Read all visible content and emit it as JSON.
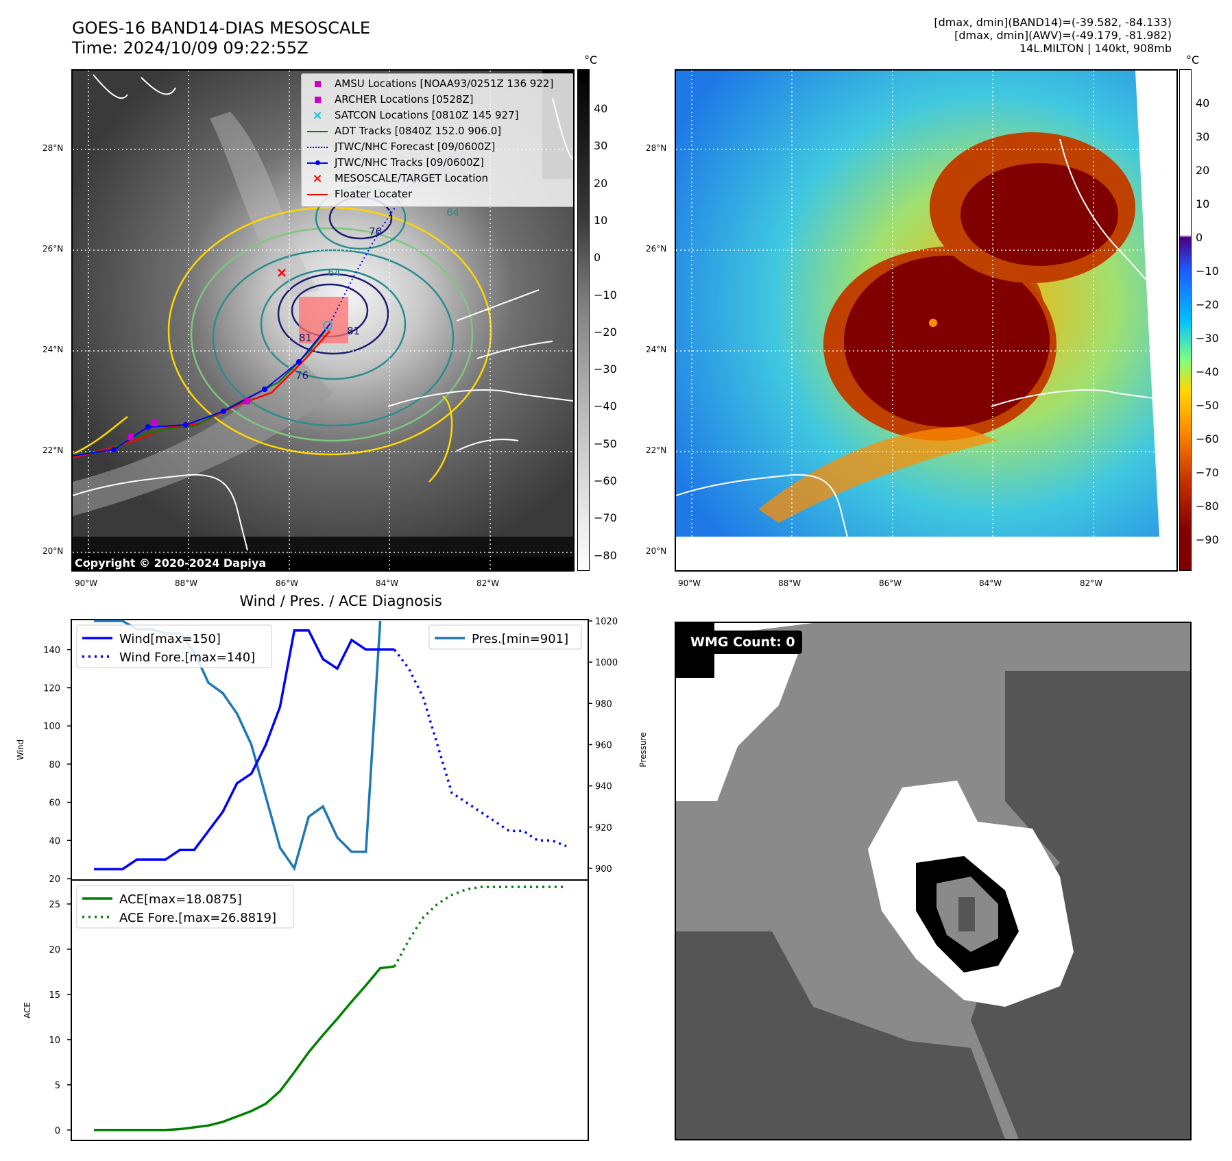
{
  "header": {
    "title_line1": "GOES-16 BAND14-DIAS MESOSCALE",
    "title_line2": "Time: 2024/10/09 09:22:55Z",
    "info_line1": "[dmax, dmin](BAND14)=(-39.582, -84.133)",
    "info_line2": "[dmax, dmin](AWV)=(-49.179, -81.982)",
    "info_line3": "14L.MILTON | 140kt, 908mb"
  },
  "map_ir": {
    "copyright": "Copyright © 2020-2024 Dapiya",
    "lat_labels": [
      "28°N",
      "26°N",
      "24°N",
      "22°N",
      "20°N"
    ],
    "lon_labels": [
      "90°W",
      "88°W",
      "86°W",
      "84°W",
      "82°W"
    ],
    "contour_labels": [
      "64",
      "76",
      "76",
      "64",
      "81",
      "81"
    ],
    "legend": [
      {
        "label": "AMSU Locations [NOAA93/0251Z 136 922]",
        "marker": "square",
        "color": "#cc00cc"
      },
      {
        "label": "ARCHER Locations [0528Z]",
        "marker": "square",
        "color": "#cc00cc"
      },
      {
        "label": "SATCON Locations [0810Z 145 927]",
        "marker": "x",
        "color": "#17becf"
      },
      {
        "label": "ADT Tracks [0840Z 152.0 906.0]",
        "marker": "line",
        "color": "#008000"
      },
      {
        "label": "JTWC/NHC Forecast [09/0600Z]",
        "marker": "dotted",
        "color": "#0000ff"
      },
      {
        "label": "JTWC/NHC Tracks [09/0600Z]",
        "marker": "line-dot",
        "color": "#0000ff"
      },
      {
        "label": "MESOSCALE/TARGET Location",
        "marker": "x",
        "color": "#ff0000"
      },
      {
        "label": "Floater Locater",
        "marker": "line",
        "color": "#ff0000"
      }
    ]
  },
  "cbar_ir": {
    "unit": "°C",
    "ticks": [
      "40",
      "30",
      "20",
      "10",
      "0",
      "−10",
      "−20",
      "−30",
      "−40",
      "−50",
      "−60",
      "−70",
      "−80"
    ]
  },
  "map_wv": {
    "lat_labels": [
      "28°N",
      "26°N",
      "24°N",
      "22°N",
      "20°N"
    ],
    "lon_labels": [
      "90°W",
      "88°W",
      "86°W",
      "84°W",
      "82°W"
    ]
  },
  "cbar_wv": {
    "unit": "°C",
    "ticks": [
      "40",
      "30",
      "20",
      "10",
      "0",
      "−10",
      "−20",
      "−30",
      "−40",
      "−50",
      "−60",
      "−70",
      "−80",
      "−90"
    ]
  },
  "wmg": {
    "label": "WMG Count: 0"
  },
  "colors": {
    "wind": "#0000ff",
    "pressure": "#1f77b4",
    "ace": "#008000",
    "ir_yellow_contour": "#ffd700",
    "ir_green_contour": "#7fc77f",
    "ir_teal_contour": "#2a8c8c",
    "ir_navy_contour": "#1c1c6e",
    "wv_eye": "#800000"
  },
  "chart_data": [
    {
      "type": "line",
      "title": "Wind / Pres. / ACE Diagnosis",
      "xlabel": "",
      "ylabel": "Wind",
      "ylim": [
        20,
        155
      ],
      "y_ticks": [
        "140",
        "120",
        "100",
        "80",
        "60",
        "40",
        "20"
      ],
      "y2label": "Pressure",
      "y2lim": [
        895,
        1020
      ],
      "y2_ticks": [
        "1020",
        "1000",
        "980",
        "960",
        "940",
        "920",
        "900"
      ],
      "x_range": [
        0,
        33
      ],
      "legend_left": "upper-left",
      "legend_right": "upper-right",
      "series": [
        {
          "name": "Wind[max=150]",
          "style": "solid",
          "axis": "left",
          "x": [
            0,
            1,
            2,
            3,
            4,
            5,
            6,
            7,
            8,
            9,
            10,
            11,
            12,
            13,
            14,
            15,
            16,
            17,
            18,
            19,
            20,
            21
          ],
          "y": [
            25,
            25,
            25,
            30,
            30,
            30,
            35,
            35,
            45,
            55,
            70,
            75,
            90,
            110,
            150,
            150,
            135,
            130,
            145,
            140,
            140,
            140
          ]
        },
        {
          "name": "Wind Fore.[max=140]",
          "style": "dotted",
          "axis": "left",
          "x": [
            21,
            22,
            23,
            24,
            25,
            26,
            27,
            28,
            29,
            30,
            31,
            32,
            33
          ],
          "y": [
            140,
            130,
            115,
            90,
            65,
            60,
            55,
            50,
            45,
            45,
            40,
            40,
            37
          ]
        },
        {
          "name": "Pres.[min=901]",
          "style": "solid",
          "axis": "right",
          "x": [
            0,
            1,
            2,
            3,
            4,
            5,
            6,
            7,
            8,
            9,
            10,
            11,
            12,
            13,
            14,
            15,
            16,
            17,
            18,
            19,
            20
          ],
          "y": [
            1020,
            1020,
            1020,
            1016,
            1016,
            1014,
            1014,
            1005,
            990,
            985,
            975,
            960,
            935,
            910,
            900,
            925,
            930,
            915,
            908,
            908,
            1020
          ]
        }
      ]
    },
    {
      "type": "line",
      "xlabel": "",
      "ylabel": "ACE",
      "ylim": [
        -1,
        27.5
      ],
      "y_ticks": [
        "25",
        "20",
        "15",
        "10",
        "5",
        "0"
      ],
      "x_range": [
        0,
        33
      ],
      "legend": "upper-left",
      "series": [
        {
          "name": "ACE[max=18.0875]",
          "style": "solid",
          "x": [
            0,
            1,
            2,
            3,
            4,
            5,
            6,
            7,
            8,
            9,
            10,
            11,
            12,
            13,
            14,
            15,
            16,
            17,
            18,
            19,
            20,
            21
          ],
          "y": [
            0,
            0,
            0,
            0,
            0,
            0,
            0.1,
            0.3,
            0.5,
            0.9,
            1.5,
            2.1,
            2.9,
            4.3,
            6.4,
            8.6,
            10.5,
            12.3,
            14.2,
            16.0,
            17.9,
            18.0875
          ]
        },
        {
          "name": "ACE Fore.[max=26.8819]",
          "style": "dotted",
          "x": [
            21,
            22,
            23,
            24,
            25,
            26,
            27,
            28,
            29,
            30,
            31,
            32,
            33
          ],
          "y": [
            18.0875,
            21.0,
            23.5,
            25.0,
            26.0,
            26.6,
            26.8819,
            26.8819,
            26.8819,
            26.8819,
            26.8819,
            26.8819,
            26.8819
          ]
        }
      ]
    }
  ]
}
